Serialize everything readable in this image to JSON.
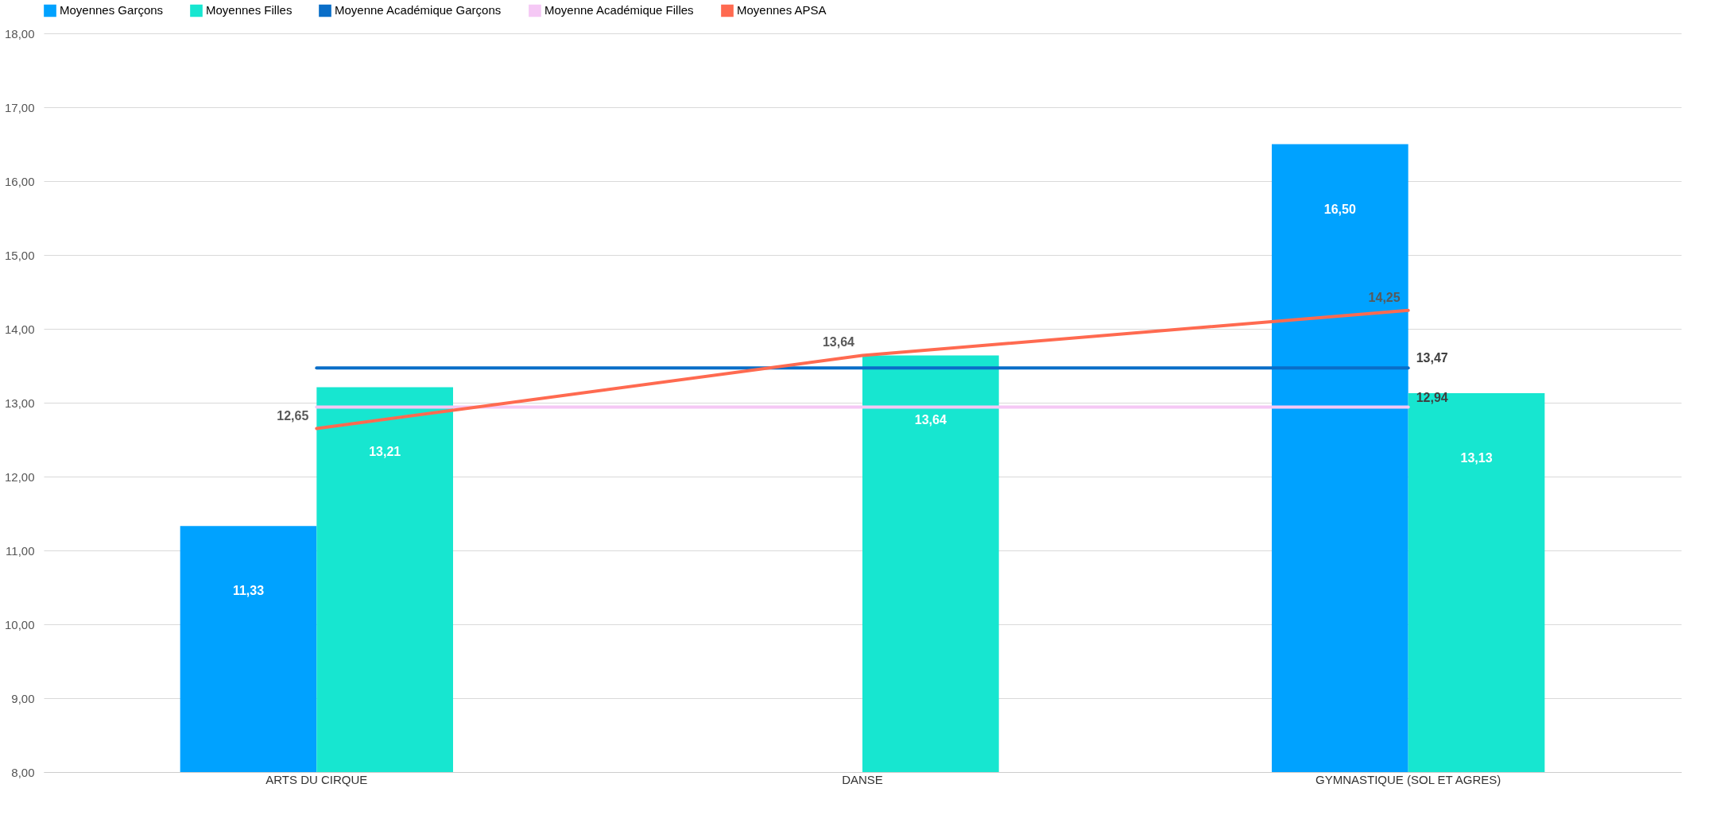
{
  "chart_data": {
    "type": "bar",
    "categories": [
      "ARTS DU CIRQUE",
      "DANSE",
      "GYMNASTIQUE (SOL ET AGRES)"
    ],
    "series": [
      {
        "name": "Moyennes Garçons",
        "color": "#00a2ff",
        "values": [
          11.33,
          null,
          16.5
        ],
        "value_labels": [
          "11,33",
          null,
          "16,50"
        ]
      },
      {
        "name": "Moyennes Filles",
        "color": "#17e6d0",
        "values": [
          13.21,
          13.64,
          13.13
        ],
        "value_labels": [
          "13,21",
          "13,64",
          "13,13"
        ]
      },
      {
        "name": "Moyenne Académique Garçons",
        "type": "line",
        "color": "#0a6ec8",
        "values": [
          13.47,
          13.47,
          13.47
        ],
        "value_labels": [
          null,
          null,
          "13,47"
        ]
      },
      {
        "name": "Moyenne Académique Filles",
        "type": "line",
        "color": "#f5c8f5",
        "values": [
          12.94,
          12.94,
          12.94
        ],
        "value_labels": [
          null,
          null,
          "12,94"
        ]
      },
      {
        "name": "Moyennes APSA",
        "type": "line",
        "color": "#ff6a50",
        "values": [
          12.65,
          13.64,
          14.25
        ],
        "value_labels": [
          "12,65",
          "13,64",
          "14,25"
        ]
      }
    ],
    "ylim": [
      8,
      18
    ],
    "yticks": [
      {
        "value": 8,
        "label": "8,00"
      },
      {
        "value": 9,
        "label": "9,00"
      },
      {
        "value": 10,
        "label": "10,00"
      },
      {
        "value": 11,
        "label": "11,00"
      },
      {
        "value": 12,
        "label": "12,00"
      },
      {
        "value": 13,
        "label": "13,00"
      },
      {
        "value": 14,
        "label": "14,00"
      },
      {
        "value": 15,
        "label": "15,00"
      },
      {
        "value": 16,
        "label": "16,00"
      },
      {
        "value": 17,
        "label": "17,00"
      },
      {
        "value": 18,
        "label": "18,00"
      }
    ],
    "grid": "y",
    "legend": "top"
  }
}
